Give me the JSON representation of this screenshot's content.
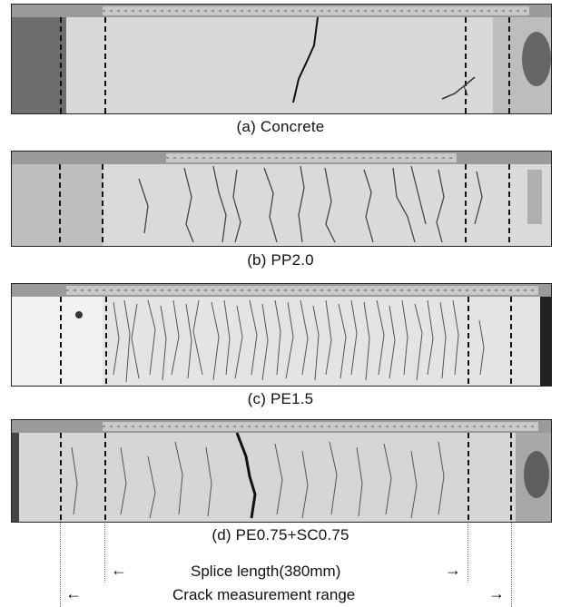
{
  "panels": [
    {
      "caption": "(a) Concrete"
    },
    {
      "caption": "(b) PP2.0"
    },
    {
      "caption": "(c) PE1.5"
    },
    {
      "caption": "(d) PE0.75+SC0.75"
    }
  ],
  "annotations": {
    "splice_label": "Splice length(380mm)",
    "crack_label": "Crack measurement range",
    "arrow_left": "←",
    "arrow_right": "→"
  }
}
